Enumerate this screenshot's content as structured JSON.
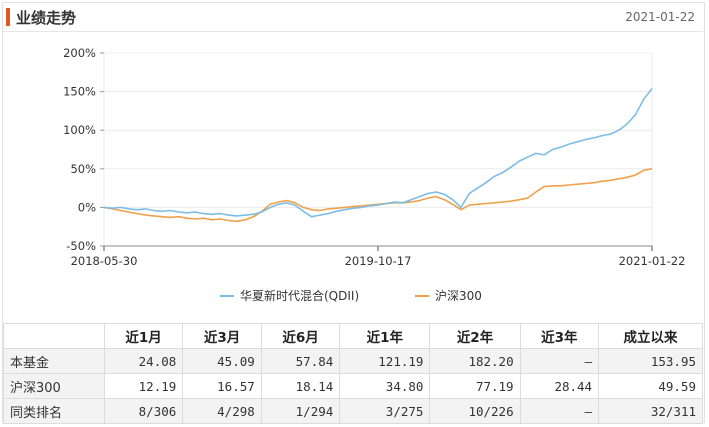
{
  "header": {
    "title": "业绩走势",
    "date": "2021-01-22"
  },
  "colors": {
    "fund": "#7cbde6",
    "index": "#f0a04a",
    "accent": "#e05a1f"
  },
  "chart_data": {
    "type": "line",
    "x_tick_labels": [
      "2018-05-30",
      "2019-10-17",
      "2021-01-22"
    ],
    "y_tick_labels": [
      "200%",
      "150%",
      "100%",
      "50%",
      "0%",
      "-50%"
    ],
    "ylim": [
      -50,
      200
    ],
    "grid": true,
    "legend_position": "bottom",
    "series": [
      {
        "name": "华夏新时代混合(QDII)",
        "color": "#7cbde6",
        "values": [
          0,
          -1,
          0,
          -2,
          -3,
          -2,
          -4,
          -5,
          -4,
          -6,
          -7,
          -6,
          -8,
          -9,
          -8,
          -10,
          -11,
          -10,
          -9,
          -6,
          0,
          4,
          6,
          3,
          -5,
          -12,
          -10,
          -8,
          -5,
          -3,
          -1,
          0,
          2,
          3,
          5,
          7,
          6,
          10,
          14,
          18,
          20,
          17,
          10,
          0,
          18,
          25,
          32,
          40,
          45,
          52,
          60,
          65,
          70,
          68,
          75,
          78,
          82,
          85,
          88,
          90,
          93,
          95,
          100,
          108,
          120,
          140,
          154
        ]
      },
      {
        "name": "沪深300",
        "color": "#f0a04a",
        "values": [
          0,
          -2,
          -4,
          -6,
          -8,
          -10,
          -11,
          -12,
          -13,
          -12,
          -14,
          -15,
          -14,
          -16,
          -15,
          -17,
          -18,
          -16,
          -12,
          -5,
          4,
          7,
          9,
          6,
          0,
          -3,
          -4,
          -2,
          -1,
          0,
          1,
          2,
          3,
          4,
          5,
          6,
          6,
          7,
          9,
          12,
          14,
          10,
          4,
          -3,
          3,
          4,
          5,
          6,
          7,
          8,
          10,
          12,
          20,
          27,
          28,
          28,
          29,
          30,
          31,
          32,
          34,
          35,
          37,
          39,
          42,
          48,
          50
        ]
      }
    ]
  },
  "table": {
    "headers": [
      "近1月",
      "近3月",
      "近6月",
      "近1年",
      "近2年",
      "近3年",
      "成立以来"
    ],
    "rows": [
      {
        "label": "本基金",
        "cells": [
          "24.08",
          "45.09",
          "57.84",
          "121.19",
          "182.20",
          "—",
          "153.95"
        ]
      },
      {
        "label": "沪深300",
        "cells": [
          "12.19",
          "16.57",
          "18.14",
          "34.80",
          "77.19",
          "28.44",
          "49.59"
        ]
      },
      {
        "label": "同类排名",
        "cells": [
          "8/306",
          "4/298",
          "1/294",
          "3/275",
          "10/226",
          "—",
          "32/311"
        ]
      }
    ]
  }
}
